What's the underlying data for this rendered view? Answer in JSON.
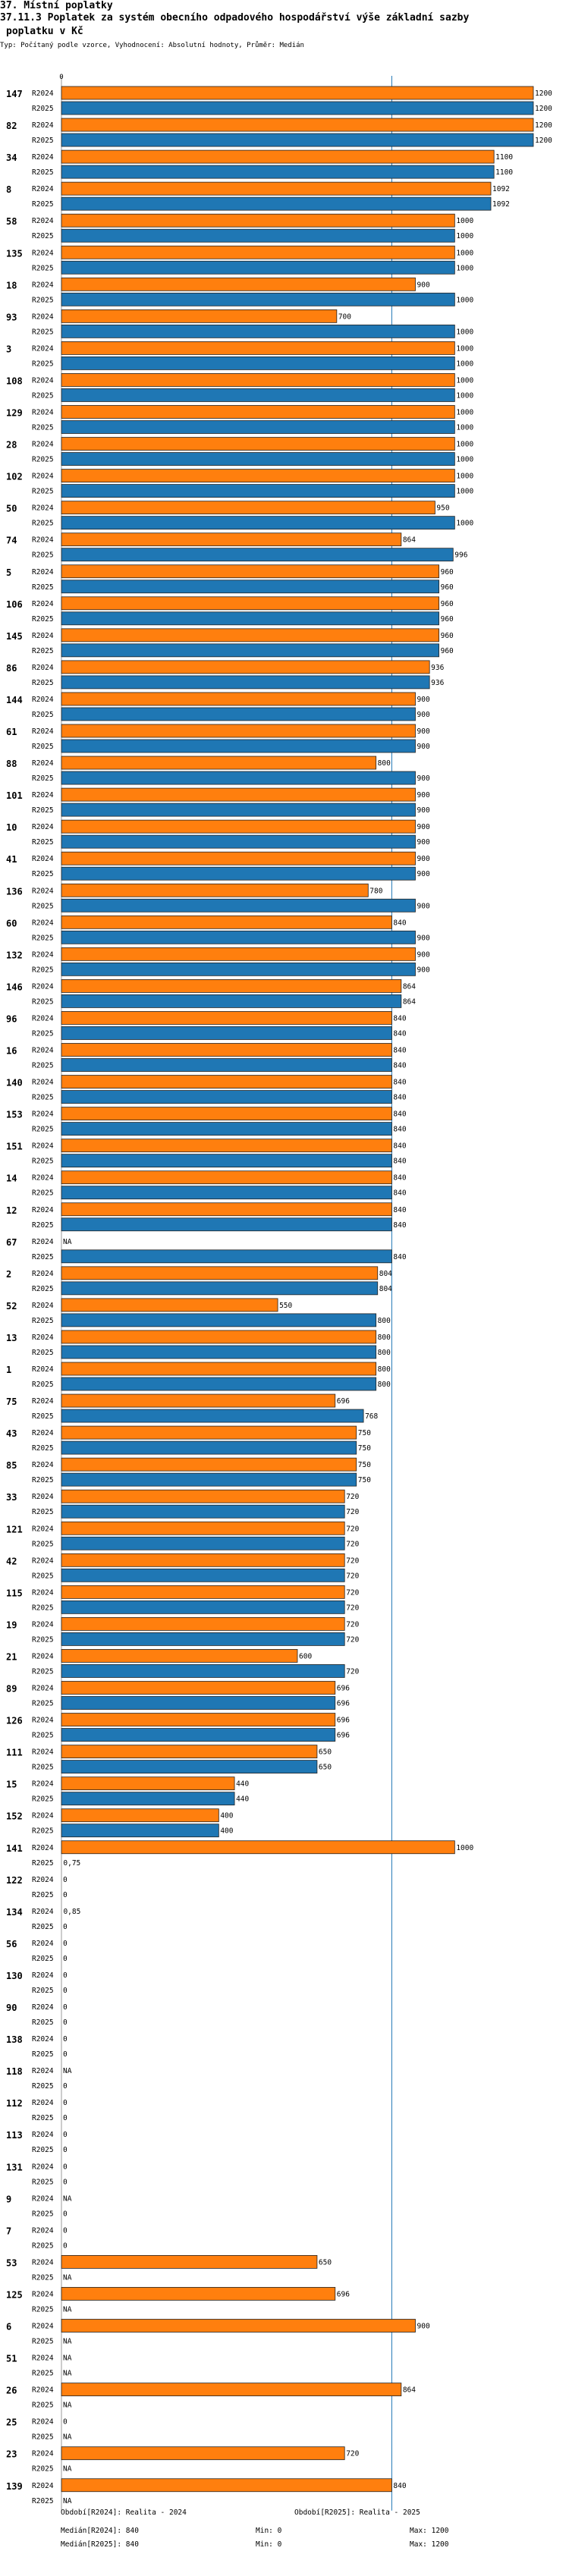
{
  "header": {
    "section": "37. Místní poplatky",
    "title_line1": "37.11.3 Poplatek za systém obecního odpadového hospodářství   výše základní sazby",
    "title_line2": "poplatku v Kč",
    "subtitle": "Typ: Počítaný podle vzorce, Vyhodnocení: Absolutní hodnoty, Průměr: Medián"
  },
  "colors": {
    "r2024": "#FF7F0E",
    "r2025": "#1F77B4",
    "ref_line": "#1F77B4"
  },
  "chart_data": {
    "type": "bar",
    "orientation": "horizontal",
    "series_names": [
      "R2024",
      "R2025"
    ],
    "xlim": [
      0,
      1200
    ],
    "x_tick_labels": [
      "0"
    ],
    "reference_line": {
      "value": 840,
      "label": "Medián"
    },
    "categories": [
      "147",
      "82",
      "34",
      "8",
      "58",
      "135",
      "18",
      "93",
      "3",
      "108",
      "129",
      "28",
      "102",
      "50",
      "74",
      "5",
      "106",
      "145",
      "86",
      "144",
      "61",
      "88",
      "101",
      "10",
      "41",
      "136",
      "60",
      "132",
      "146",
      "96",
      "16",
      "140",
      "153",
      "151",
      "14",
      "12",
      "67",
      "2",
      "52",
      "13",
      "1",
      "75",
      "43",
      "85",
      "33",
      "121",
      "42",
      "115",
      "19",
      "21",
      "89",
      "126",
      "111",
      "15",
      "152",
      "141",
      "122",
      "134",
      "56",
      "130",
      "90",
      "138",
      "118",
      "112",
      "113",
      "131",
      "9",
      "7",
      "53",
      "125",
      "6",
      "51",
      "26",
      "25",
      "23",
      "139"
    ],
    "series": [
      {
        "name": "R2024",
        "values": [
          1200,
          1200,
          1100,
          1092,
          1000,
          1000,
          900,
          700,
          1000,
          1000,
          1000,
          1000,
          1000,
          950,
          864,
          960,
          960,
          960,
          936,
          900,
          900,
          800,
          900,
          900,
          900,
          780,
          840,
          900,
          864,
          840,
          840,
          840,
          840,
          840,
          840,
          840,
          null,
          804,
          550,
          800,
          800,
          696,
          750,
          750,
          720,
          720,
          720,
          720,
          720,
          600,
          696,
          696,
          650,
          440,
          400,
          1000,
          0,
          0.85,
          0,
          0,
          0,
          0,
          null,
          0,
          0,
          0,
          null,
          0,
          650,
          696,
          900,
          null,
          864,
          0,
          720,
          840
        ]
      },
      {
        "name": "R2025",
        "values": [
          1200,
          1200,
          1100,
          1092,
          1000,
          1000,
          1000,
          1000,
          1000,
          1000,
          1000,
          1000,
          1000,
          1000,
          996,
          960,
          960,
          960,
          936,
          900,
          900,
          900,
          900,
          900,
          900,
          900,
          900,
          900,
          864,
          840,
          840,
          840,
          840,
          840,
          840,
          840,
          840,
          804,
          800,
          800,
          800,
          768,
          750,
          750,
          720,
          720,
          720,
          720,
          720,
          720,
          696,
          696,
          650,
          440,
          400,
          0.75,
          0,
          0,
          0,
          0,
          0,
          0,
          0,
          0,
          0,
          0,
          0,
          0,
          null,
          null,
          null,
          null,
          null,
          null,
          null,
          null
        ]
      }
    ],
    "value_labels": {
      "R2024": [
        "1200",
        "1200",
        "1100",
        "1092",
        "1000",
        "1000",
        "900",
        "700",
        "1000",
        "1000",
        "1000",
        "1000",
        "1000",
        "950",
        "864",
        "960",
        "960",
        "960",
        "936",
        "900",
        "900",
        "800",
        "900",
        "900",
        "900",
        "780",
        "840",
        "900",
        "864",
        "840",
        "840",
        "840",
        "840",
        "840",
        "840",
        "840",
        "NA",
        "804",
        "550",
        "800",
        "800",
        "696",
        "750",
        "750",
        "720",
        "720",
        "720",
        "720",
        "720",
        "600",
        "696",
        "696",
        "650",
        "440",
        "400",
        "1000",
        "0",
        "0,85",
        "0",
        "0",
        "0",
        "0",
        "NA",
        "0",
        "0",
        "0",
        "NA",
        "0",
        "650",
        "696",
        "900",
        "NA",
        "864",
        "0",
        "720",
        "840"
      ],
      "R2025": [
        "1200",
        "1200",
        "1100",
        "1092",
        "1000",
        "1000",
        "1000",
        "1000",
        "1000",
        "1000",
        "1000",
        "1000",
        "1000",
        "1000",
        "996",
        "960",
        "960",
        "960",
        "936",
        "900",
        "900",
        "900",
        "900",
        "900",
        "900",
        "900",
        "900",
        "900",
        "864",
        "840",
        "840",
        "840",
        "840",
        "840",
        "840",
        "840",
        "840",
        "804",
        "800",
        "800",
        "800",
        "768",
        "750",
        "750",
        "720",
        "720",
        "720",
        "720",
        "720",
        "720",
        "696",
        "696",
        "650",
        "440",
        "400",
        "0,75",
        "0",
        "0",
        "0",
        "0",
        "0",
        "0",
        "0",
        "0",
        "0",
        "0",
        "0",
        "0",
        "NA",
        "NA",
        "NA",
        "NA",
        "NA",
        "NA",
        "NA",
        "NA"
      ]
    }
  },
  "footer": {
    "r2024_period": "Období[R2024]: Realita - 2024",
    "r2025_period": "Období[R2025]: Realita - 2025",
    "r2024_median": "Medián[R2024]: 840",
    "r2024_min": "Min: 0",
    "r2024_max": "Max: 1200",
    "r2025_median": "Medián[R2025]: 840",
    "r2025_min": "Min: 0",
    "r2025_max": "Max: 1200"
  }
}
